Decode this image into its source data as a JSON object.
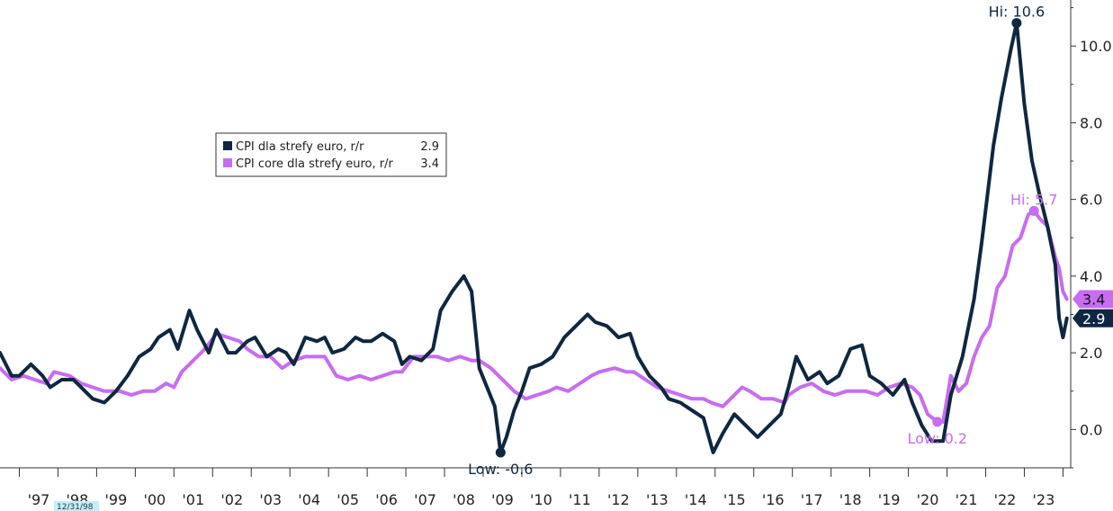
{
  "chart_data": {
    "type": "line",
    "title": "",
    "xlabel": "",
    "ylabel": "",
    "ylim": [
      -1.0,
      11.2
    ],
    "xlim": [
      1996.5,
      2024.2
    ],
    "y_ticks": [
      "0.0",
      "2.0",
      "4.0",
      "6.0",
      "8.0",
      "10.0"
    ],
    "x_ticks": [
      "'97",
      "'98",
      "'99",
      "'00",
      "'01",
      "'02",
      "'03",
      "'04",
      "'05",
      "'06",
      "'07",
      "'08",
      "'09",
      "'10",
      "'11",
      "'12",
      "'13",
      "'14",
      "'15",
      "'16",
      "'17",
      "'18",
      "'19",
      "'20",
      "'21",
      "'22",
      "'23"
    ],
    "grid": false,
    "legend_position": "upper-left",
    "date_box": "12/31/98",
    "series": [
      {
        "name": "CPI dla strefy euro, r/r",
        "legend_value": "2.9",
        "last_label": "2.9",
        "color": "#0f2740",
        "points": [
          [
            1996.5,
            2.0
          ],
          [
            1996.8,
            1.4
          ],
          [
            1997.0,
            1.4
          ],
          [
            1997.3,
            1.7
          ],
          [
            1997.6,
            1.4
          ],
          [
            1997.8,
            1.1
          ],
          [
            1998.1,
            1.3
          ],
          [
            1998.4,
            1.3
          ],
          [
            1998.7,
            1.0
          ],
          [
            1998.9,
            0.8
          ],
          [
            1999.2,
            0.7
          ],
          [
            1999.5,
            1.0
          ],
          [
            1999.8,
            1.4
          ],
          [
            2000.1,
            1.9
          ],
          [
            2000.4,
            2.1
          ],
          [
            2000.6,
            2.4
          ],
          [
            2000.9,
            2.6
          ],
          [
            2001.1,
            2.1
          ],
          [
            2001.4,
            3.1
          ],
          [
            2001.6,
            2.6
          ],
          [
            2001.9,
            2.0
          ],
          [
            2002.1,
            2.6
          ],
          [
            2002.4,
            2.0
          ],
          [
            2002.6,
            2.0
          ],
          [
            2002.9,
            2.3
          ],
          [
            2003.1,
            2.4
          ],
          [
            2003.4,
            1.9
          ],
          [
            2003.7,
            2.1
          ],
          [
            2003.9,
            2.0
          ],
          [
            2004.1,
            1.7
          ],
          [
            2004.4,
            2.4
          ],
          [
            2004.7,
            2.3
          ],
          [
            2004.9,
            2.4
          ],
          [
            2005.1,
            2.0
          ],
          [
            2005.4,
            2.1
          ],
          [
            2005.7,
            2.4
          ],
          [
            2005.9,
            2.3
          ],
          [
            2006.1,
            2.3
          ],
          [
            2006.4,
            2.5
          ],
          [
            2006.7,
            2.3
          ],
          [
            2006.9,
            1.7
          ],
          [
            2007.1,
            1.9
          ],
          [
            2007.4,
            1.8
          ],
          [
            2007.7,
            2.1
          ],
          [
            2007.9,
            3.1
          ],
          [
            2008.2,
            3.6
          ],
          [
            2008.5,
            4.0
          ],
          [
            2008.7,
            3.6
          ],
          [
            2008.9,
            1.6
          ],
          [
            2009.1,
            1.1
          ],
          [
            2009.3,
            0.6
          ],
          [
            2009.45,
            -0.6
          ],
          [
            2009.6,
            -0.2
          ],
          [
            2009.8,
            0.5
          ],
          [
            2010.0,
            1.0
          ],
          [
            2010.2,
            1.6
          ],
          [
            2010.5,
            1.7
          ],
          [
            2010.8,
            1.9
          ],
          [
            2011.1,
            2.4
          ],
          [
            2011.4,
            2.7
          ],
          [
            2011.7,
            3.0
          ],
          [
            2011.9,
            2.8
          ],
          [
            2012.2,
            2.7
          ],
          [
            2012.5,
            2.4
          ],
          [
            2012.8,
            2.5
          ],
          [
            2013.0,
            1.9
          ],
          [
            2013.3,
            1.4
          ],
          [
            2013.6,
            1.1
          ],
          [
            2013.8,
            0.8
          ],
          [
            2014.1,
            0.7
          ],
          [
            2014.4,
            0.5
          ],
          [
            2014.7,
            0.3
          ],
          [
            2014.95,
            -0.6
          ],
          [
            2015.2,
            -0.1
          ],
          [
            2015.5,
            0.4
          ],
          [
            2015.7,
            0.2
          ],
          [
            2015.9,
            0.0
          ],
          [
            2016.1,
            -0.2
          ],
          [
            2016.4,
            0.1
          ],
          [
            2016.7,
            0.4
          ],
          [
            2016.9,
            1.1
          ],
          [
            2017.1,
            1.9
          ],
          [
            2017.4,
            1.3
          ],
          [
            2017.7,
            1.5
          ],
          [
            2017.9,
            1.2
          ],
          [
            2018.2,
            1.4
          ],
          [
            2018.5,
            2.1
          ],
          [
            2018.8,
            2.2
          ],
          [
            2019.0,
            1.4
          ],
          [
            2019.3,
            1.2
          ],
          [
            2019.6,
            0.9
          ],
          [
            2019.9,
            1.3
          ],
          [
            2020.1,
            0.7
          ],
          [
            2020.35,
            0.1
          ],
          [
            2020.6,
            -0.3
          ],
          [
            2020.9,
            -0.3
          ],
          [
            2021.1,
            0.9
          ],
          [
            2021.4,
            1.9
          ],
          [
            2021.7,
            3.4
          ],
          [
            2021.9,
            4.9
          ],
          [
            2022.2,
            7.4
          ],
          [
            2022.4,
            8.6
          ],
          [
            2022.65,
            9.9
          ],
          [
            2022.8,
            10.6
          ],
          [
            2023.0,
            8.5
          ],
          [
            2023.2,
            7.0
          ],
          [
            2023.4,
            6.1
          ],
          [
            2023.6,
            5.3
          ],
          [
            2023.8,
            4.3
          ],
          [
            2023.9,
            2.9
          ],
          [
            2024.0,
            2.4
          ],
          [
            2024.1,
            2.9
          ]
        ],
        "annotations": [
          {
            "label": "Hi: 10.6",
            "x": 2022.8,
            "y": 10.6
          },
          {
            "label": "Low: -0.6",
            "x": 2009.45,
            "y": -0.6
          }
        ]
      },
      {
        "name": "CPI core dla strefy euro, r/r",
        "legend_value": "3.4",
        "last_label": "3.4",
        "color": "#c76df0",
        "points": [
          [
            1996.5,
            1.6
          ],
          [
            1996.8,
            1.3
          ],
          [
            1997.1,
            1.4
          ],
          [
            1997.4,
            1.3
          ],
          [
            1997.7,
            1.2
          ],
          [
            1997.9,
            1.5
          ],
          [
            1998.3,
            1.4
          ],
          [
            1998.6,
            1.2
          ],
          [
            1998.9,
            1.1
          ],
          [
            1999.2,
            1.0
          ],
          [
            1999.6,
            1.0
          ],
          [
            1999.9,
            0.9
          ],
          [
            2000.2,
            1.0
          ],
          [
            2000.5,
            1.0
          ],
          [
            2000.8,
            1.2
          ],
          [
            2001.0,
            1.1
          ],
          [
            2001.2,
            1.5
          ],
          [
            2001.5,
            1.8
          ],
          [
            2001.8,
            2.1
          ],
          [
            2002.1,
            2.5
          ],
          [
            2002.4,
            2.4
          ],
          [
            2002.7,
            2.3
          ],
          [
            2002.9,
            2.1
          ],
          [
            2003.2,
            1.9
          ],
          [
            2003.5,
            1.9
          ],
          [
            2003.8,
            1.6
          ],
          [
            2004.1,
            1.8
          ],
          [
            2004.4,
            1.9
          ],
          [
            2004.7,
            1.9
          ],
          [
            2004.9,
            1.9
          ],
          [
            2005.2,
            1.4
          ],
          [
            2005.5,
            1.3
          ],
          [
            2005.8,
            1.4
          ],
          [
            2006.1,
            1.3
          ],
          [
            2006.4,
            1.4
          ],
          [
            2006.7,
            1.5
          ],
          [
            2006.9,
            1.5
          ],
          [
            2007.2,
            1.9
          ],
          [
            2007.5,
            1.9
          ],
          [
            2007.8,
            1.9
          ],
          [
            2008.1,
            1.8
          ],
          [
            2008.4,
            1.9
          ],
          [
            2008.7,
            1.8
          ],
          [
            2008.9,
            1.8
          ],
          [
            2009.2,
            1.6
          ],
          [
            2009.4,
            1.4
          ],
          [
            2009.6,
            1.2
          ],
          [
            2009.8,
            1.0
          ],
          [
            2010.1,
            0.8
          ],
          [
            2010.4,
            0.9
          ],
          [
            2010.7,
            1.0
          ],
          [
            2010.9,
            1.1
          ],
          [
            2011.2,
            1.0
          ],
          [
            2011.5,
            1.2
          ],
          [
            2011.8,
            1.4
          ],
          [
            2012.0,
            1.5
          ],
          [
            2012.4,
            1.6
          ],
          [
            2012.7,
            1.5
          ],
          [
            2012.9,
            1.5
          ],
          [
            2013.2,
            1.3
          ],
          [
            2013.5,
            1.1
          ],
          [
            2013.8,
            1.0
          ],
          [
            2014.1,
            0.9
          ],
          [
            2014.4,
            0.8
          ],
          [
            2014.7,
            0.8
          ],
          [
            2014.9,
            0.7
          ],
          [
            2015.2,
            0.6
          ],
          [
            2015.4,
            0.8
          ],
          [
            2015.7,
            1.1
          ],
          [
            2015.9,
            1.0
          ],
          [
            2016.2,
            0.8
          ],
          [
            2016.5,
            0.8
          ],
          [
            2016.8,
            0.7
          ],
          [
            2016.9,
            0.9
          ],
          [
            2017.2,
            1.1
          ],
          [
            2017.5,
            1.2
          ],
          [
            2017.8,
            1.0
          ],
          [
            2018.1,
            0.9
          ],
          [
            2018.4,
            1.0
          ],
          [
            2018.7,
            1.0
          ],
          [
            2018.9,
            1.0
          ],
          [
            2019.2,
            0.9
          ],
          [
            2019.5,
            1.1
          ],
          [
            2019.8,
            1.2
          ],
          [
            2020.1,
            1.1
          ],
          [
            2020.3,
            0.9
          ],
          [
            2020.5,
            0.4
          ],
          [
            2020.75,
            0.2
          ],
          [
            2020.9,
            0.2
          ],
          [
            2021.1,
            1.4
          ],
          [
            2021.3,
            1.0
          ],
          [
            2021.5,
            1.2
          ],
          [
            2021.7,
            1.9
          ],
          [
            2021.9,
            2.4
          ],
          [
            2022.1,
            2.7
          ],
          [
            2022.3,
            3.7
          ],
          [
            2022.5,
            4.0
          ],
          [
            2022.7,
            4.8
          ],
          [
            2022.9,
            5.0
          ],
          [
            2023.1,
            5.6
          ],
          [
            2023.25,
            5.7
          ],
          [
            2023.4,
            5.5
          ],
          [
            2023.6,
            5.3
          ],
          [
            2023.8,
            4.5
          ],
          [
            2023.9,
            4.2
          ],
          [
            2024.0,
            3.6
          ],
          [
            2024.1,
            3.4
          ]
        ],
        "annotations": [
          {
            "label": "Hi: 5.7",
            "x": 2023.25,
            "y": 5.7
          },
          {
            "label": "Low: 0.2",
            "x": 2020.75,
            "y": 0.2
          }
        ]
      }
    ]
  }
}
